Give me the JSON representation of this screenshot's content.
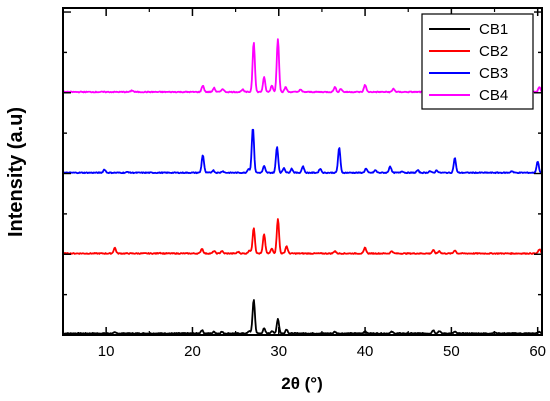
{
  "chart_data": {
    "type": "line",
    "xlabel": "2θ (°)",
    "ylabel": "Intensity (a.u)",
    "xlim": [
      5,
      60.5
    ],
    "xticks": [
      10,
      20,
      30,
      40,
      50,
      60
    ],
    "y_tick_labels": "none",
    "grid": false,
    "legend_position": "top-right",
    "series": [
      {
        "name": "CB1",
        "color": "#000000",
        "baseline": 0.02,
        "peaks": [
          [
            11.0,
            0.01
          ],
          [
            21.1,
            0.04
          ],
          [
            22.5,
            0.02
          ],
          [
            23.4,
            0.02
          ],
          [
            26.6,
            0.03
          ],
          [
            27.1,
            0.42
          ],
          [
            28.3,
            0.06
          ],
          [
            29.2,
            0.03
          ],
          [
            29.9,
            0.18
          ],
          [
            30.9,
            0.05
          ],
          [
            36.5,
            0.02
          ],
          [
            40.0,
            0.03
          ],
          [
            43.1,
            0.02
          ],
          [
            47.9,
            0.04
          ],
          [
            48.6,
            0.03
          ],
          [
            50.4,
            0.02
          ],
          [
            55.0,
            0.01
          ],
          [
            60.2,
            0.02
          ]
        ]
      },
      {
        "name": "CB2",
        "color": "#ff0000",
        "baseline": 1.01,
        "peaks": [
          [
            11.0,
            0.07
          ],
          [
            16.2,
            0.01
          ],
          [
            21.1,
            0.06
          ],
          [
            22.5,
            0.03
          ],
          [
            23.4,
            0.03
          ],
          [
            25.3,
            0.02
          ],
          [
            26.6,
            0.04
          ],
          [
            27.1,
            0.32
          ],
          [
            28.3,
            0.24
          ],
          [
            29.2,
            0.06
          ],
          [
            29.9,
            0.43
          ],
          [
            30.9,
            0.09
          ],
          [
            36.5,
            0.03
          ],
          [
            40.0,
            0.07
          ],
          [
            43.1,
            0.03
          ],
          [
            47.9,
            0.04
          ],
          [
            48.6,
            0.03
          ],
          [
            50.4,
            0.04
          ],
          [
            60.2,
            0.05
          ]
        ]
      },
      {
        "name": "CB3",
        "color": "#0000ff",
        "baseline": 2.01,
        "peaks": [
          [
            9.8,
            0.04
          ],
          [
            12.5,
            0.01
          ],
          [
            21.2,
            0.22
          ],
          [
            22.4,
            0.03
          ],
          [
            23.5,
            0.02
          ],
          [
            26.5,
            0.05
          ],
          [
            27.0,
            0.56
          ],
          [
            28.3,
            0.08
          ],
          [
            29.8,
            0.32
          ],
          [
            30.6,
            0.06
          ],
          [
            31.5,
            0.05
          ],
          [
            32.8,
            0.08
          ],
          [
            34.8,
            0.05
          ],
          [
            37.0,
            0.31
          ],
          [
            40.1,
            0.05
          ],
          [
            41.2,
            0.03
          ],
          [
            42.9,
            0.08
          ],
          [
            44.3,
            0.02
          ],
          [
            46.1,
            0.03
          ],
          [
            47.5,
            0.02
          ],
          [
            48.3,
            0.03
          ],
          [
            50.4,
            0.18
          ],
          [
            57.0,
            0.02
          ],
          [
            60.0,
            0.14
          ]
        ]
      },
      {
        "name": "CB4",
        "color": "#ff00ff",
        "baseline": 3.01,
        "peaks": [
          [
            13.0,
            0.02
          ],
          [
            21.2,
            0.08
          ],
          [
            22.5,
            0.05
          ],
          [
            23.5,
            0.04
          ],
          [
            25.8,
            0.03
          ],
          [
            27.1,
            0.62
          ],
          [
            28.3,
            0.18
          ],
          [
            29.2,
            0.08
          ],
          [
            29.9,
            0.66
          ],
          [
            30.8,
            0.06
          ],
          [
            32.5,
            0.03
          ],
          [
            36.5,
            0.06
          ],
          [
            37.2,
            0.04
          ],
          [
            40.0,
            0.09
          ],
          [
            43.3,
            0.04
          ],
          [
            47.9,
            0.05
          ],
          [
            48.6,
            0.07
          ],
          [
            50.4,
            0.04
          ],
          [
            57.0,
            0.02
          ],
          [
            60.2,
            0.06
          ]
        ]
      }
    ]
  }
}
